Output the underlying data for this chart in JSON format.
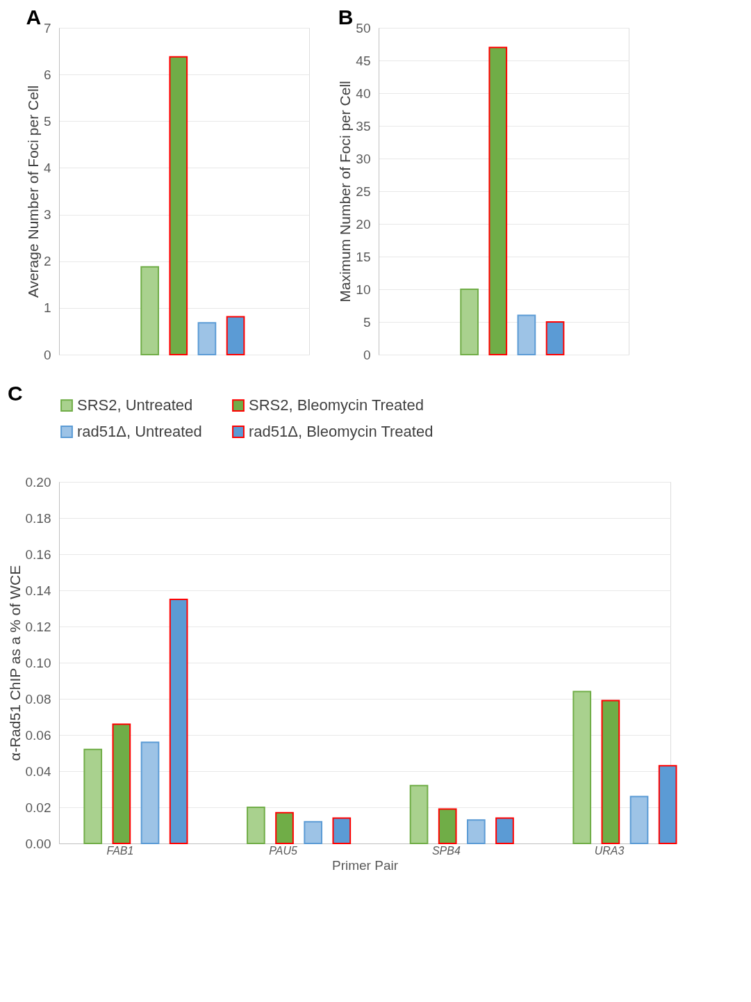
{
  "chart_data": [
    {
      "type": "bar",
      "title": "A",
      "ylabel": "Average Number of Foci per Cell",
      "categories": [
        null
      ],
      "ylim": [
        0,
        7
      ],
      "yticks": [
        0,
        1,
        2,
        3,
        4,
        5,
        6,
        7
      ],
      "grid": "y",
      "legend": false,
      "tick_labels": "y",
      "series": [
        {
          "color": "#a9d18e",
          "values": [
            1.88
          ]
        },
        {
          "color": "#70ad47",
          "values": [
            6.38
          ]
        },
        {
          "color": "#9dc3e6",
          "values": [
            0.68
          ]
        },
        {
          "color": "#5b9bd5",
          "values": [
            0.81
          ]
        }
      ]
    },
    {
      "type": "bar",
      "title": "B",
      "ylabel": "Maximum Number of Foci per Cell",
      "categories": [
        null
      ],
      "ylim": [
        0,
        50
      ],
      "yticks": [
        0,
        5,
        10,
        15,
        20,
        25,
        30,
        35,
        40,
        45,
        50
      ],
      "grid": "y",
      "legend": false,
      "tick_labels": "y",
      "series": [
        {
          "color": "#a9d18e",
          "values": [
            10
          ]
        },
        {
          "color": "#70ad47",
          "values": [
            47
          ]
        },
        {
          "color": "#9dc3e6",
          "values": [
            6
          ]
        },
        {
          "color": "#5b9bd5",
          "values": [
            5
          ]
        }
      ]
    },
    {
      "type": "bar",
      "title": "C",
      "xlabel": "Primer Pair",
      "ylabel": "α-Rad51 ChIP as a % of WCE",
      "categories": [
        "FAB1",
        "PAU5",
        "SPB4",
        "URA3"
      ],
      "ylim": [
        0,
        0.2
      ],
      "yticks": [
        {
          "value": 0,
          "label": "0.00"
        },
        {
          "value": 0.02,
          "label": "0.02"
        },
        {
          "value": 0.04,
          "label": "0.04"
        },
        {
          "value": 0.06,
          "label": "0.06"
        },
        {
          "value": 0.08,
          "label": "0.08"
        },
        {
          "value": 0.1,
          "label": "0.10"
        },
        {
          "value": 0.12,
          "label": "0.12"
        },
        {
          "value": 0.14,
          "label": "0.14"
        },
        {
          "value": 0.16,
          "label": "0.16"
        },
        {
          "value": 0.18,
          "label": "0.18"
        },
        {
          "value": 0.2,
          "label": "0.20"
        }
      ],
      "grid": "y",
      "legend": "top",
      "series": [
        {
          "name": "SRS2, Untreated",
          "color": "#a9d18e",
          "values": [
            0.052,
            0.02,
            0.032,
            0.084
          ]
        },
        {
          "name": "SRS2, Bleomycin Treated",
          "color": "#70ad47",
          "values": [
            0.066,
            0.017,
            0.019,
            0.079
          ]
        },
        {
          "name": "rad51Δ, Untreated",
          "color": "#9dc3e6",
          "values": [
            0.056,
            0.012,
            0.013,
            0.026
          ]
        },
        {
          "name": "rad51Δ, Bleomycin Treated",
          "color": "#5b9bd5",
          "values": [
            0.135,
            0.014,
            0.014,
            0.043
          ]
        }
      ]
    }
  ]
}
